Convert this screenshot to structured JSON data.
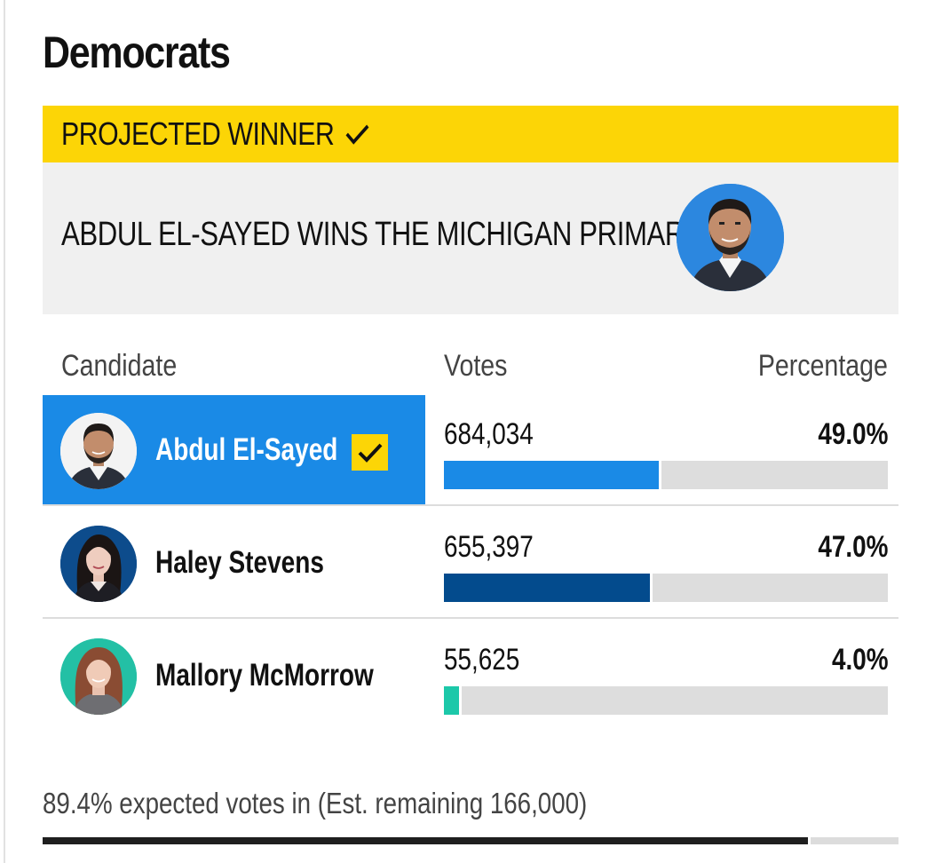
{
  "party": {
    "heading": "Democrats"
  },
  "winner": {
    "label": "PROJECTED WINNER",
    "icon": "check-icon",
    "headline": "ABDUL EL-SAYED WINS THE MICHIGAN PRIMARY"
  },
  "table": {
    "headers": {
      "candidate": "Candidate",
      "votes": "Votes",
      "percentage": "Percentage"
    },
    "rows": [
      {
        "name": "Abdul El-Sayed",
        "votes": "684,034",
        "percentage": "49.0%",
        "share": 0.49,
        "bar_color": "#1a8ae6",
        "winner": true,
        "avatar_bg": "#2c87df",
        "photo": "man-with-beard-avatar"
      },
      {
        "name": "Haley Stevens",
        "votes": "655,397",
        "percentage": "47.0%",
        "share": 0.47,
        "bar_color": "#034b8d",
        "winner": false,
        "avatar_bg": "#0d4c8c",
        "photo": "woman-dark-hair-avatar"
      },
      {
        "name": "Mallory McMorrow",
        "votes": "55,625",
        "percentage": "4.0%",
        "share": 0.04,
        "bar_color": "#1cc8a9",
        "winner": false,
        "avatar_bg": "#23c0a5",
        "photo": "woman-auburn-hair-avatar"
      }
    ]
  },
  "reporting": {
    "text": "89.4% expected votes in (Est. remaining 166,000)",
    "share": 0.894
  },
  "colors": {
    "winner_yellow": "#fcd506",
    "winner_blue": "#1a8ae6",
    "track_gray": "#dddddd"
  }
}
